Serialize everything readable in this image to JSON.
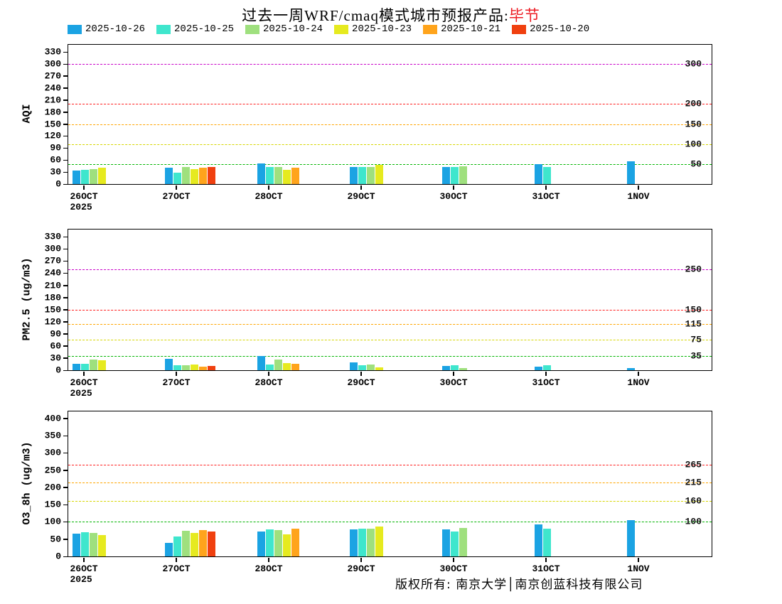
{
  "title": {
    "text": "过去一周WRF/cmaq模式城市预报产品:",
    "highlight": "毕节",
    "highlight_color": "#ed1c24"
  },
  "legend": [
    {
      "label": "2025-10-26",
      "color": "#1ba3e3"
    },
    {
      "label": "2025-10-25",
      "color": "#3fe6cd"
    },
    {
      "label": "2025-10-24",
      "color": "#9fe07e"
    },
    {
      "label": "2025-10-23",
      "color": "#e6ea1f"
    },
    {
      "label": "2025-10-21",
      "color": "#ffa41c"
    },
    {
      "label": "2025-10-20",
      "color": "#f0400f"
    }
  ],
  "footer": {
    "copyright": "版权所有: 南京大学│南京创蓝科技有限公司"
  },
  "chart_data": [
    {
      "type": "bar",
      "ylabel": "AQI",
      "ylim": [
        0,
        348
      ],
      "yticks": [
        0,
        30,
        60,
        90,
        120,
        150,
        180,
        210,
        240,
        270,
        300,
        330
      ],
      "categories": [
        "26OCT",
        "27OCT",
        "28OCT",
        "29OCT",
        "30OCT",
        "31OCT",
        "1NOV"
      ],
      "x_sub_label": "2025",
      "grid": false,
      "legend_position": "top",
      "ref_lines": [
        {
          "value": 50,
          "label": "50",
          "color": "#00b400"
        },
        {
          "value": 100,
          "label": "100",
          "color": "#d6d600"
        },
        {
          "value": 150,
          "label": "150",
          "color": "#ffa500"
        },
        {
          "value": 200,
          "label": "200",
          "color": "#ff1e1e"
        },
        {
          "value": 300,
          "label": "300",
          "color": "#c800c8"
        }
      ],
      "series": [
        {
          "name": "2025-10-26",
          "color": "#1ba3e3",
          "values": [
            33,
            40,
            52,
            42,
            42,
            50,
            57
          ]
        },
        {
          "name": "2025-10-25",
          "color": "#3fe6cd",
          "values": [
            36,
            28,
            42,
            42,
            42,
            42,
            null
          ]
        },
        {
          "name": "2025-10-24",
          "color": "#9fe07e",
          "values": [
            37,
            42,
            42,
            42,
            45,
            null,
            null
          ]
        },
        {
          "name": "2025-10-23",
          "color": "#e6ea1f",
          "values": [
            40,
            38,
            35,
            48,
            null,
            null,
            null
          ]
        },
        {
          "name": "2025-10-21",
          "color": "#ffa41c",
          "values": [
            null,
            40,
            40,
            null,
            null,
            null,
            null
          ]
        },
        {
          "name": "2025-10-20",
          "color": "#f0400f",
          "values": [
            null,
            43,
            null,
            null,
            null,
            null,
            null
          ]
        }
      ]
    },
    {
      "type": "bar",
      "ylabel": "PM2.5 (ug/m3)",
      "ylim": [
        0,
        348
      ],
      "yticks": [
        0,
        30,
        60,
        90,
        120,
        150,
        180,
        210,
        240,
        270,
        300,
        330
      ],
      "categories": [
        "26OCT",
        "27OCT",
        "28OCT",
        "29OCT",
        "30OCT",
        "31OCT",
        "1NOV"
      ],
      "x_sub_label": "2025",
      "grid": false,
      "legend_position": "top",
      "ref_lines": [
        {
          "value": 35,
          "label": "35",
          "color": "#00b400"
        },
        {
          "value": 75,
          "label": "75",
          "color": "#d6d600"
        },
        {
          "value": 115,
          "label": "115",
          "color": "#ffa500"
        },
        {
          "value": 150,
          "label": "150",
          "color": "#ff1e1e"
        },
        {
          "value": 250,
          "label": "250",
          "color": "#c800c8"
        }
      ],
      "series": [
        {
          "name": "2025-10-26",
          "color": "#1ba3e3",
          "values": [
            15,
            28,
            35,
            20,
            10,
            8,
            6
          ]
        },
        {
          "name": "2025-10-25",
          "color": "#3fe6cd",
          "values": [
            15,
            13,
            14,
            13,
            12,
            13,
            null
          ]
        },
        {
          "name": "2025-10-24",
          "color": "#9fe07e",
          "values": [
            26,
            13,
            26,
            14,
            6,
            null,
            null
          ]
        },
        {
          "name": "2025-10-23",
          "color": "#e6ea1f",
          "values": [
            24,
            14,
            18,
            7,
            null,
            null,
            null
          ]
        },
        {
          "name": "2025-10-21",
          "color": "#ffa41c",
          "values": [
            null,
            8,
            15,
            null,
            null,
            null,
            null
          ]
        },
        {
          "name": "2025-10-20",
          "color": "#f0400f",
          "values": [
            null,
            10,
            null,
            null,
            null,
            null,
            null
          ]
        }
      ]
    },
    {
      "type": "bar",
      "ylabel": "O3_8h (ug/m3)",
      "ylim": [
        0,
        420
      ],
      "yticks": [
        0,
        50,
        100,
        150,
        200,
        250,
        300,
        350,
        400
      ],
      "categories": [
        "26OCT",
        "27OCT",
        "28OCT",
        "29OCT",
        "30OCT",
        "31OCT",
        "1NOV"
      ],
      "x_sub_label": "2025",
      "grid": false,
      "legend_position": "top",
      "ref_lines": [
        {
          "value": 100,
          "label": "100",
          "color": "#00b400"
        },
        {
          "value": 160,
          "label": "160",
          "color": "#d6d600"
        },
        {
          "value": 215,
          "label": "215",
          "color": "#ffa500"
        },
        {
          "value": 265,
          "label": "265",
          "color": "#ff1e1e"
        }
      ],
      "series": [
        {
          "name": "2025-10-26",
          "color": "#1ba3e3",
          "values": [
            65,
            40,
            73,
            78,
            78,
            93,
            105
          ]
        },
        {
          "name": "2025-10-25",
          "color": "#3fe6cd",
          "values": [
            70,
            57,
            78,
            80,
            73,
            80,
            null
          ]
        },
        {
          "name": "2025-10-24",
          "color": "#9fe07e",
          "values": [
            67,
            74,
            77,
            80,
            83,
            null,
            null
          ]
        },
        {
          "name": "2025-10-23",
          "color": "#e6ea1f",
          "values": [
            62,
            67,
            63,
            86,
            null,
            null,
            null
          ]
        },
        {
          "name": "2025-10-21",
          "color": "#ffa41c",
          "values": [
            null,
            77,
            80,
            null,
            null,
            null,
            null
          ]
        },
        {
          "name": "2025-10-20",
          "color": "#f0400f",
          "values": [
            null,
            73,
            null,
            null,
            null,
            null,
            null
          ]
        }
      ]
    }
  ]
}
